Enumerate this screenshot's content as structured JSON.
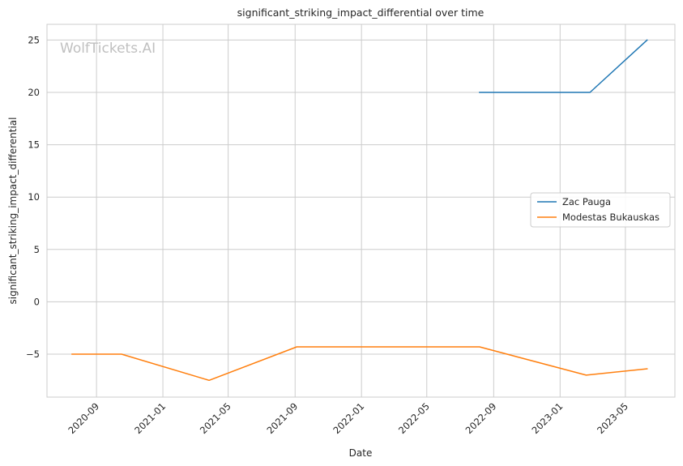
{
  "watermark": "WolfTickets.AI",
  "chart_data": {
    "type": "line",
    "title": "significant_striking_impact_differential over time",
    "xlabel": "Date",
    "ylabel": "significant_striking_impact_differential",
    "xlim": [
      "2020-06-02",
      "2023-07-31"
    ],
    "ylim": [
      -9.1,
      26.5
    ],
    "x_ticks": [
      "2020-09",
      "2021-01",
      "2021-05",
      "2021-09",
      "2022-01",
      "2022-05",
      "2022-09",
      "2023-01",
      "2023-05"
    ],
    "y_ticks": [
      -5,
      0,
      5,
      10,
      15,
      20,
      25
    ],
    "y_tick_labels": [
      "−5",
      "0",
      "5",
      "10",
      "15",
      "20",
      "25"
    ],
    "grid": true,
    "legend_position": "center-right",
    "series": [
      {
        "name": "Zac Pauga",
        "color": "#1f77b4",
        "points": [
          {
            "x": "2022-08-06",
            "y": 20
          },
          {
            "x": "2023-02-25",
            "y": 20
          },
          {
            "x": "2023-06-10",
            "y": 25
          }
        ]
      },
      {
        "name": "Modestas Bukauskas",
        "color": "#ff7f0e",
        "points": [
          {
            "x": "2020-07-18",
            "y": -5
          },
          {
            "x": "2020-10-17",
            "y": -5
          },
          {
            "x": "2021-03-27",
            "y": -7.5
          },
          {
            "x": "2021-09-04",
            "y": -4.3
          },
          {
            "x": "2022-08-06",
            "y": -4.3
          },
          {
            "x": "2023-02-18",
            "y": -7
          },
          {
            "x": "2023-06-10",
            "y": -6.4
          }
        ]
      }
    ]
  }
}
